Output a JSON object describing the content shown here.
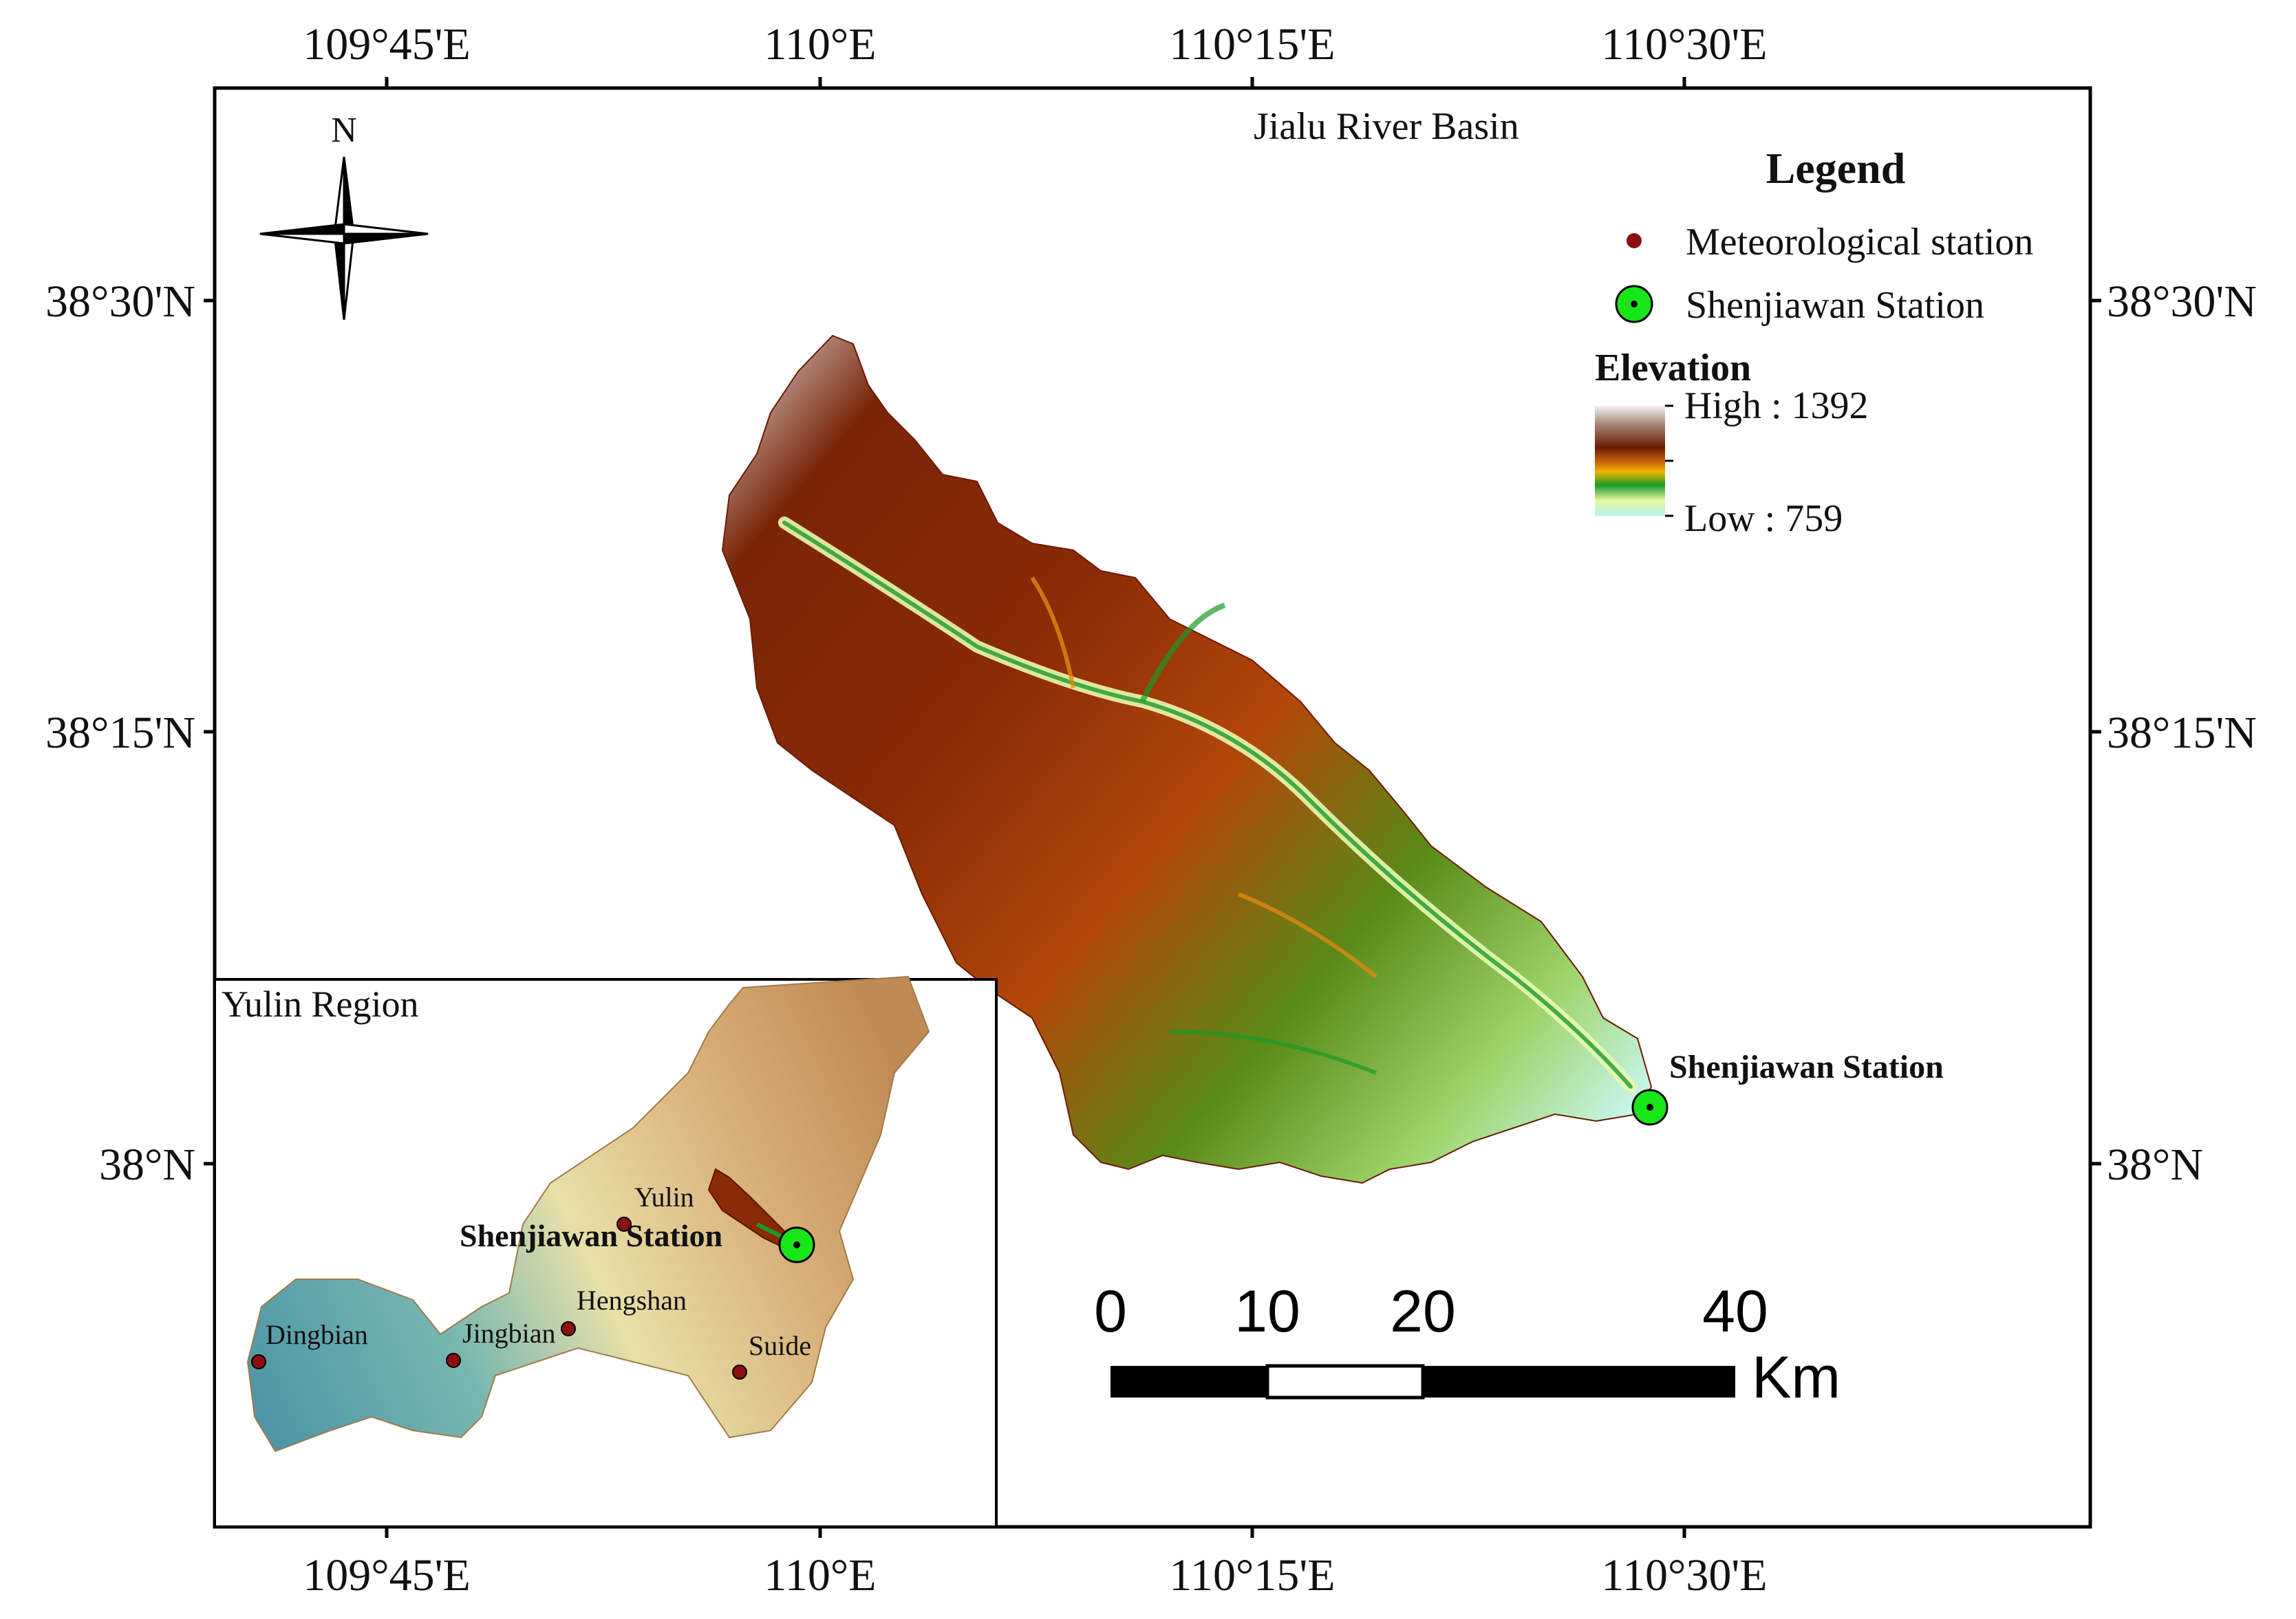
{
  "map": {
    "title": "Jialu River Basin",
    "longitude_ticks": [
      "109°45'E",
      "110°E",
      "110°15'E",
      "110°30'E"
    ],
    "latitude_ticks": [
      "38°30'N",
      "38°15'N",
      "38°N"
    ]
  },
  "compass": {
    "north_label": "N"
  },
  "legend": {
    "title": "Legend",
    "items": [
      {
        "label": "Meteorological station",
        "symbol": "dark-red-dot",
        "color": "#8b1010"
      },
      {
        "label": "Shenjiawan Station",
        "symbol": "green-circle-dot",
        "color": "#19e619"
      }
    ],
    "elevation": {
      "title": "Elevation",
      "high_label": "High : 1392",
      "low_label": "Low : 759",
      "ramp_colors": [
        "#e8e8e8",
        "#9a6a4a",
        "#6b1a04",
        "#c85a0a",
        "#f0b400",
        "#1a9a2a",
        "#e6f7a0",
        "#b4f5f0"
      ]
    }
  },
  "basin_station_label": "Shenjiawan Station",
  "inset": {
    "title": "Yulin Region",
    "cities": [
      {
        "label": "Yulin"
      },
      {
        "label": "Hengshan"
      },
      {
        "label": "Dingbian"
      },
      {
        "label": "Jingbian"
      },
      {
        "label": "Suide"
      }
    ],
    "station_label": "Shenjiawan Station"
  },
  "scale_bar": {
    "labels": [
      "0",
      "10",
      "20",
      "40"
    ],
    "unit": "Km"
  }
}
